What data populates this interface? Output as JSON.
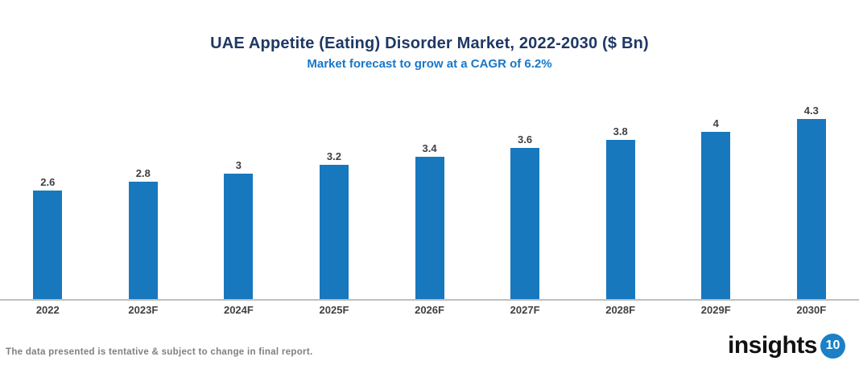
{
  "header": {
    "title": "UAE Appetite (Eating) Disorder Market, 2022-2030 ($ Bn)",
    "subtitle": "Market forecast to grow at a CAGR of 6.2%"
  },
  "chart_data": {
    "type": "bar",
    "categories": [
      "2022",
      "2023F",
      "2024F",
      "2025F",
      "2026F",
      "2027F",
      "2028F",
      "2029F",
      "2030F"
    ],
    "values": [
      2.6,
      2.8,
      3,
      3.2,
      3.4,
      3.6,
      3.8,
      4,
      4.3
    ],
    "title": "UAE Appetite (Eating) Disorder Market, 2022-2030 ($ Bn)",
    "subtitle": "Market forecast to grow at a CAGR of 6.2%",
    "xlabel": "",
    "ylabel": "",
    "ylim": [
      0,
      4.5
    ],
    "grid": false,
    "legend": "none",
    "bar_color": "#1878BE",
    "data_labels": [
      "2.6",
      "2.8",
      "3",
      "3.2",
      "3.4",
      "3.6",
      "3.8",
      "4",
      "4.3"
    ]
  },
  "footer": {
    "note": "The data presented is tentative & subject to change in final report.",
    "logo_text": "insights",
    "logo_number": "10"
  },
  "colors": {
    "title": "#1F3864",
    "subtitle": "#1778C9",
    "bar": "#1878BE",
    "axis_line": "#BFBFBF",
    "labels": "#404040",
    "footer_note": "#808080",
    "logo_circle": "#1B80C6"
  }
}
